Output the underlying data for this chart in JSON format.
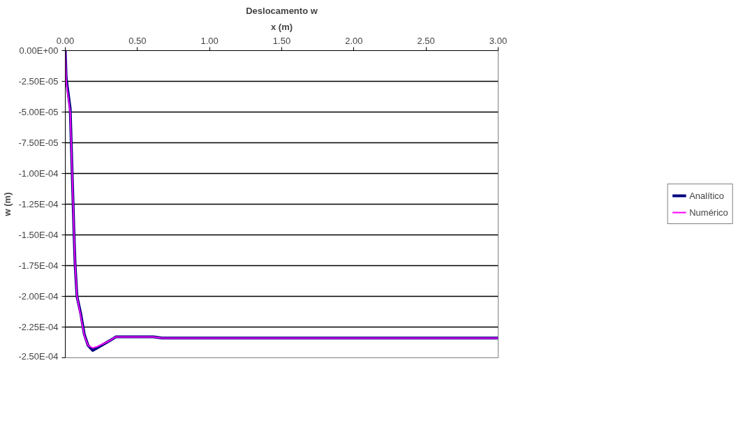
{
  "chart_data": {
    "type": "line",
    "title": "Deslocamento w",
    "xlabel": "x (m)",
    "ylabel": "w (m)",
    "xlim": [
      0,
      3
    ],
    "xticks": [
      {
        "value": 0,
        "label": "0.00"
      },
      {
        "value": 0.5,
        "label": "0.50"
      },
      {
        "value": 1,
        "label": "1.00"
      },
      {
        "value": 1.5,
        "label": "1.50"
      },
      {
        "value": 2,
        "label": "2.00"
      },
      {
        "value": 2.5,
        "label": "2.50"
      },
      {
        "value": 3,
        "label": "3.00"
      }
    ],
    "ylim": [
      -0.00025,
      0
    ],
    "yticks": [
      {
        "value": 0,
        "label": "0.00E+00"
      },
      {
        "value": -2.5e-05,
        "label": "-2.50E-05"
      },
      {
        "value": -5e-05,
        "label": "-5.00E-05"
      },
      {
        "value": -7.5e-05,
        "label": "-7.50E-05"
      },
      {
        "value": -0.0001,
        "label": "-1.00E-04"
      },
      {
        "value": -0.000125,
        "label": "-1.25E-04"
      },
      {
        "value": -0.00015,
        "label": "-1.50E-04"
      },
      {
        "value": -0.000175,
        "label": "-1.75E-04"
      },
      {
        "value": -0.0002,
        "label": "-2.00E-04"
      },
      {
        "value": -0.000225,
        "label": "-2.25E-04"
      },
      {
        "value": -0.00025,
        "label": "-2.50E-04"
      }
    ],
    "grid": "y",
    "legend": "right",
    "line_style": "solid",
    "series": [
      {
        "name": "Analítico",
        "color": "#000080",
        "x": [
          0,
          0.006,
          0.034,
          0.047,
          0.06,
          0.068,
          0.081,
          0.107,
          0.132,
          0.158,
          0.19,
          0.22,
          0.31,
          0.35,
          0.61,
          0.67,
          1.0,
          2.0,
          3.0
        ],
        "values": [
          0,
          -2.2e-05,
          -4.7e-05,
          -9.7e-05,
          -0.000147,
          -0.000174,
          -0.0002,
          -0.000214,
          -0.000231,
          -0.00024,
          -0.000244,
          -0.000242,
          -0.000236,
          -0.000233,
          -0.000233,
          -0.000234,
          -0.000234,
          -0.000234,
          -0.000234
        ]
      },
      {
        "name": "Numérico",
        "color": "#ff00ff",
        "x": [
          0,
          0.006,
          0.034,
          0.047,
          0.06,
          0.068,
          0.081,
          0.107,
          0.132,
          0.158,
          0.19,
          0.22,
          0.31,
          0.35,
          0.61,
          0.67,
          1.0,
          2.0,
          3.0
        ],
        "values": [
          0,
          -2.5e-05,
          -5e-05,
          -9.7e-05,
          -0.000147,
          -0.000174,
          -0.0002,
          -0.000216,
          -0.000232,
          -0.00024,
          -0.000242,
          -0.000241,
          -0.000236,
          -0.000233,
          -0.000233,
          -0.000234,
          -0.000234,
          -0.000234,
          -0.000234
        ]
      }
    ]
  }
}
